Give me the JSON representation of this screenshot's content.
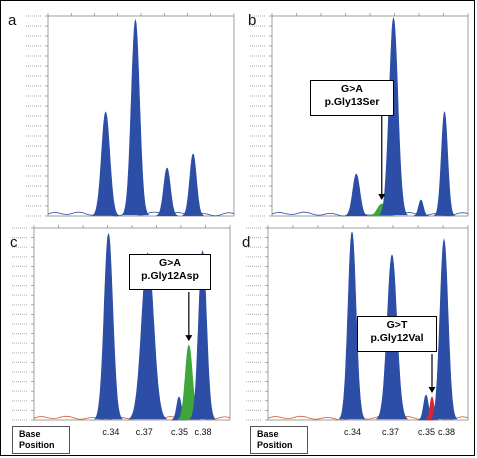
{
  "base_position": {
    "line1": "Base",
    "line2": "Position"
  },
  "colors": {
    "blue": "#2d4ea6",
    "green": "#3fa63a",
    "red": "#d8262b",
    "baseline_blue": "#2d4ea6",
    "baseline_red": "#d35a2a"
  },
  "chart_data": [
    {
      "panel": "a",
      "type": "area",
      "peaks": [
        {
          "center": 0.31,
          "height": 0.52,
          "width": 0.022,
          "color": "blue"
        },
        {
          "center": 0.47,
          "height": 0.98,
          "width": 0.022,
          "color": "blue"
        },
        {
          "center": 0.64,
          "height": 0.24,
          "width": 0.018,
          "color": "blue"
        },
        {
          "center": 0.78,
          "height": 0.31,
          "width": 0.018,
          "color": "blue"
        }
      ],
      "annotation": null,
      "position_labels": []
    },
    {
      "panel": "b",
      "type": "area",
      "peaks": [
        {
          "center": 0.43,
          "height": 0.21,
          "width": 0.018,
          "color": "blue"
        },
        {
          "center": 0.56,
          "height": 0.06,
          "width": 0.022,
          "color": "green"
        },
        {
          "center": 0.62,
          "height": 0.99,
          "width": 0.022,
          "color": "blue"
        },
        {
          "center": 0.76,
          "height": 0.08,
          "width": 0.012,
          "color": "blue"
        },
        {
          "center": 0.88,
          "height": 0.52,
          "width": 0.016,
          "color": "blue"
        }
      ],
      "annotation": {
        "line1": "G>A",
        "line2": "p.Gly13Ser",
        "target": 0.56
      },
      "position_labels": []
    },
    {
      "panel": "c",
      "type": "area",
      "peaks": [
        {
          "center": 0.38,
          "height": 0.97,
          "width": 0.022,
          "color": "blue"
        },
        {
          "center": 0.58,
          "height": 0.87,
          "width": 0.03,
          "color": "blue"
        },
        {
          "center": 0.74,
          "height": 0.12,
          "width": 0.012,
          "color": "blue"
        },
        {
          "center": 0.79,
          "height": 0.39,
          "width": 0.018,
          "color": "green"
        },
        {
          "center": 0.86,
          "height": 0.88,
          "width": 0.02,
          "color": "blue"
        }
      ],
      "annotation": {
        "line1": "G>A",
        "line2": "p.Gly12Asp",
        "target": 0.79
      },
      "position_labels": [
        "c.34",
        "c.37",
        "c.35",
        "c.38"
      ],
      "position_x": [
        0.4,
        0.57,
        0.75,
        0.87
      ]
    },
    {
      "panel": "d",
      "type": "area",
      "peaks": [
        {
          "center": 0.42,
          "height": 0.98,
          "width": 0.02,
          "color": "blue"
        },
        {
          "center": 0.62,
          "height": 0.86,
          "width": 0.024,
          "color": "blue"
        },
        {
          "center": 0.79,
          "height": 0.13,
          "width": 0.012,
          "color": "blue"
        },
        {
          "center": 0.82,
          "height": 0.12,
          "width": 0.01,
          "color": "red"
        },
        {
          "center": 0.88,
          "height": 0.94,
          "width": 0.02,
          "color": "blue"
        }
      ],
      "annotation": {
        "line1": "G>T",
        "line2": "p.Gly12Val",
        "target": 0.82
      },
      "position_labels": [
        "c.34",
        "c.37",
        "c.35",
        "c.38"
      ],
      "position_x": [
        0.43,
        0.62,
        0.8,
        0.9
      ]
    }
  ]
}
